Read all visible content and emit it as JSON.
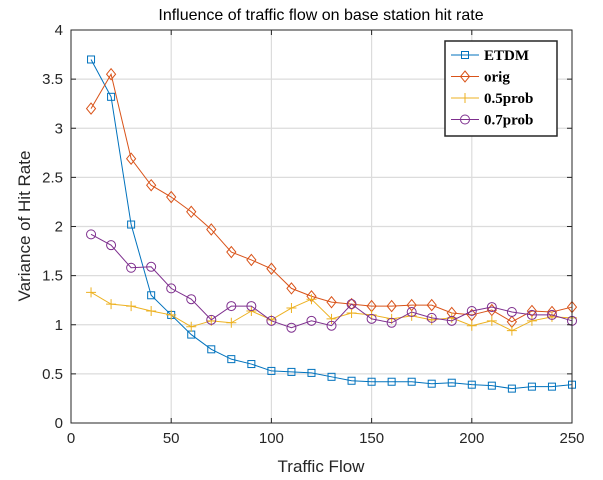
{
  "chart_data": {
    "type": "line",
    "title": "Influence of traffic flow on base station hit rate",
    "xlabel": "Traffic Flow",
    "ylabel": "Variance of Hit Rate",
    "xlim": [
      0,
      250
    ],
    "ylim": [
      0,
      4
    ],
    "xticks": [
      0,
      50,
      100,
      150,
      200,
      250
    ],
    "yticks": [
      0,
      0.5,
      1,
      1.5,
      2,
      2.5,
      3,
      3.5,
      4
    ],
    "grid": true,
    "legend_position": "top-right",
    "x": [
      10,
      20,
      30,
      40,
      50,
      60,
      70,
      80,
      90,
      100,
      110,
      120,
      130,
      140,
      150,
      160,
      170,
      180,
      190,
      200,
      210,
      220,
      230,
      240,
      250
    ],
    "series": [
      {
        "name": "ETDM",
        "color": "#0072BD",
        "marker": "square",
        "values": [
          3.7,
          3.32,
          2.02,
          1.3,
          1.1,
          0.9,
          0.75,
          0.65,
          0.6,
          0.53,
          0.52,
          0.51,
          0.47,
          0.43,
          0.42,
          0.42,
          0.42,
          0.4,
          0.41,
          0.39,
          0.38,
          0.35,
          0.37,
          0.37,
          0.39
        ]
      },
      {
        "name": "orig",
        "color": "#D95319",
        "marker": "diamond",
        "values": [
          3.2,
          3.55,
          2.69,
          2.42,
          2.3,
          2.15,
          1.97,
          1.74,
          1.66,
          1.57,
          1.37,
          1.29,
          1.23,
          1.21,
          1.19,
          1.19,
          1.2,
          1.2,
          1.12,
          1.1,
          1.15,
          1.03,
          1.14,
          1.13,
          1.18
        ]
      },
      {
        "name": "0.5prob",
        "color": "#EDB120",
        "marker": "plus",
        "values": [
          1.33,
          1.21,
          1.19,
          1.14,
          1.1,
          0.98,
          1.04,
          1.02,
          1.14,
          1.05,
          1.17,
          1.26,
          1.06,
          1.12,
          1.1,
          1.06,
          1.09,
          1.05,
          1.07,
          0.99,
          1.04,
          0.94,
          1.04,
          1.08,
          1.07
        ]
      },
      {
        "name": "0.7prob",
        "color": "#7E2F8E",
        "marker": "circle",
        "values": [
          1.92,
          1.81,
          1.58,
          1.59,
          1.37,
          1.26,
          1.05,
          1.19,
          1.19,
          1.04,
          0.97,
          1.04,
          0.99,
          1.21,
          1.06,
          1.02,
          1.13,
          1.07,
          1.04,
          1.14,
          1.18,
          1.13,
          1.1,
          1.1,
          1.04
        ]
      }
    ]
  }
}
